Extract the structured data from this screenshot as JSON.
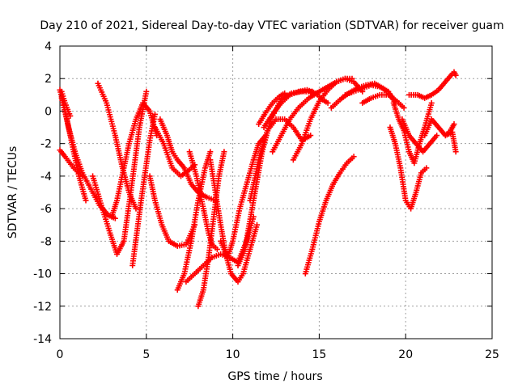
{
  "chart_data": {
    "type": "scatter",
    "title": "Day 210 of 2021, Sidereal Day-to-day VTEC variation (SDTVAR) for receiver guam",
    "xlabel": "GPS time / hours",
    "ylabel": "SDTVAR / TECUs",
    "xlim": [
      0,
      25
    ],
    "ylim": [
      -14,
      4
    ],
    "x_ticks": [
      "0",
      "5",
      "10",
      "15",
      "20",
      "25"
    ],
    "y_ticks": [
      "4",
      "2",
      "0",
      "-2",
      "-4",
      "-6",
      "-8",
      "-10",
      "-12",
      "-14"
    ],
    "grid": true,
    "legend": "none",
    "marker": "+",
    "color": "#ff0000",
    "series": [
      {
        "x": [
          0.0,
          0.2,
          0.5,
          0.9,
          1.3,
          1.8,
          2.3,
          2.8,
          3.2
        ],
        "y": [
          1.3,
          0.5,
          -1.0,
          -2.6,
          -3.8,
          -4.8,
          -5.8,
          -6.4,
          -6.6
        ]
      },
      {
        "x": [
          0.1,
          0.4,
          0.8,
          1.1,
          1.5
        ],
        "y": [
          0.8,
          -0.5,
          -2.5,
          -4.0,
          -5.5
        ]
      },
      {
        "x": [
          0.0,
          0.3,
          0.8,
          1.3
        ],
        "y": [
          -2.4,
          -2.8,
          -3.5,
          -4.0
        ]
      },
      {
        "x": [
          0.1,
          0.3,
          0.6
        ],
        "y": [
          1.2,
          0.5,
          -0.3
        ]
      },
      {
        "x": [
          2.2,
          2.7,
          3.2,
          3.6,
          4.0,
          4.4
        ],
        "y": [
          1.7,
          0.5,
          -1.5,
          -3.4,
          -5.0,
          -6.0
        ]
      },
      {
        "x": [
          1.9,
          2.4,
          2.9,
          3.3,
          3.7,
          4.1,
          4.6,
          5.0
        ],
        "y": [
          -4.0,
          -5.8,
          -7.5,
          -8.8,
          -8.0,
          -5.0,
          -1.0,
          1.2
        ]
      },
      {
        "x": [
          3.0,
          3.3,
          3.7,
          4.0,
          4.4,
          4.8,
          5.2,
          5.6
        ],
        "y": [
          -6.5,
          -5.5,
          -3.5,
          -2.0,
          -0.5,
          0.5,
          0.0,
          -1.5
        ]
      },
      {
        "x": [
          4.2,
          4.7,
          5.2,
          5.5
        ],
        "y": [
          -9.5,
          -5.5,
          -1.8,
          -0.2
        ]
      },
      {
        "x": [
          5.5,
          6.0,
          6.5,
          7.0,
          7.5,
          7.8
        ],
        "y": [
          -1.0,
          -2.0,
          -3.5,
          -4.0,
          -3.6,
          -3.3
        ]
      },
      {
        "x": [
          5.2,
          5.5,
          5.9,
          6.3,
          6.8,
          7.3,
          7.8
        ],
        "y": [
          -4.0,
          -5.5,
          -7.0,
          -8.0,
          -8.3,
          -8.2,
          -7.0
        ]
      },
      {
        "x": [
          5.8,
          6.2,
          6.5,
          6.8,
          7.2,
          7.6,
          8.0,
          8.5,
          9.0
        ],
        "y": [
          -0.5,
          -1.5,
          -2.5,
          -3.0,
          -3.5,
          -4.5,
          -5.0,
          -5.3,
          -5.5
        ]
      },
      {
        "x": [
          6.8,
          7.2,
          7.6,
          8.0,
          8.4,
          8.7
        ],
        "y": [
          -11.0,
          -10.0,
          -8.0,
          -5.5,
          -3.5,
          -2.5
        ]
      },
      {
        "x": [
          7.5,
          7.9,
          8.3,
          8.6,
          8.8,
          9.1
        ],
        "y": [
          -2.5,
          -4.0,
          -6.0,
          -7.5,
          -8.2,
          -8.5
        ]
      },
      {
        "x": [
          8.0,
          8.3,
          8.6,
          8.9,
          9.2,
          9.5
        ],
        "y": [
          -12.0,
          -11.0,
          -9.0,
          -6.5,
          -4.0,
          -2.5
        ]
      },
      {
        "x": [
          8.7,
          9.0,
          9.3,
          9.6,
          9.9,
          10.3,
          10.6,
          11.0,
          11.4
        ],
        "y": [
          -3.0,
          -5.0,
          -7.0,
          -8.8,
          -10.0,
          -10.5,
          -10.0,
          -8.5,
          -7.0
        ]
      },
      {
        "x": [
          7.3,
          7.8,
          8.3,
          8.8,
          9.3,
          9.8,
          10.3,
          10.8,
          11.2
        ],
        "y": [
          -10.5,
          -10.0,
          -9.5,
          -9.0,
          -8.8,
          -9.0,
          -9.3,
          -8.0,
          -6.5
        ]
      },
      {
        "x": [
          9.3,
          9.7,
          10.0,
          10.4,
          10.8,
          11.2,
          11.5,
          11.9
        ],
        "y": [
          -8.0,
          -9.0,
          -8.0,
          -6.0,
          -4.5,
          -3.0,
          -2.0,
          -1.5
        ]
      },
      {
        "x": [
          10.3,
          10.7,
          11.2,
          11.7,
          12.2,
          12.8,
          13.4,
          14.0,
          14.6
        ],
        "y": [
          -9.5,
          -8.5,
          -5.5,
          -2.5,
          -0.5,
          0.7,
          1.1,
          1.2,
          1.2
        ]
      },
      {
        "x": [
          11.0,
          11.5,
          12.0,
          12.5,
          13.0,
          13.5,
          14.0,
          14.5
        ],
        "y": [
          -5.5,
          -3.0,
          -1.2,
          -0.5,
          -0.5,
          -1.0,
          -1.8,
          -1.5
        ]
      },
      {
        "x": [
          11.8,
          12.3,
          12.8,
          13.3,
          13.8,
          14.3,
          14.8,
          15.2,
          15.5
        ],
        "y": [
          -1.0,
          -0.2,
          0.5,
          1.0,
          1.2,
          1.3,
          1.1,
          0.7,
          0.5
        ]
      },
      {
        "x": [
          11.5,
          11.9,
          12.3,
          12.7,
          13.0
        ],
        "y": [
          -0.8,
          -0.1,
          0.5,
          0.9,
          1.1
        ]
      },
      {
        "x": [
          12.3,
          12.8,
          13.3,
          13.8,
          14.4,
          15.0,
          15.5,
          16.0,
          16.5,
          16.9
        ],
        "y": [
          -2.5,
          -1.5,
          -0.5,
          0.2,
          0.8,
          1.2,
          1.5,
          1.8,
          2.0,
          2.0
        ]
      },
      {
        "x": [
          13.5,
          14.0,
          14.5,
          15.0,
          15.5,
          16.0,
          16.5,
          17.0,
          17.5
        ],
        "y": [
          -3.0,
          -2.0,
          -0.5,
          0.6,
          1.3,
          1.8,
          2.0,
          1.8,
          1.2
        ]
      },
      {
        "x": [
          15.7,
          16.2,
          16.7,
          17.2,
          17.7,
          18.2,
          18.7,
          19.2
        ],
        "y": [
          0.2,
          0.7,
          1.1,
          1.4,
          1.6,
          1.7,
          1.4,
          0.9
        ]
      },
      {
        "x": [
          16.5,
          17.0,
          17.5,
          18.0,
          18.5,
          19.0,
          19.4
        ],
        "y": [
          1.0,
          1.2,
          1.4,
          1.6,
          1.5,
          1.2,
          0.5
        ]
      },
      {
        "x": [
          17.5,
          18.0,
          18.5,
          19.0,
          19.5,
          19.9
        ],
        "y": [
          0.5,
          0.8,
          1.0,
          1.0,
          0.6,
          0.2
        ]
      },
      {
        "x": [
          14.2,
          14.6,
          15.0,
          15.4,
          15.8,
          16.2,
          16.6,
          17.0
        ],
        "y": [
          -10.0,
          -8.5,
          -6.8,
          -5.5,
          -4.5,
          -3.8,
          -3.2,
          -2.8
        ]
      },
      {
        "x": [
          19.1,
          19.4,
          19.7,
          20.0,
          20.3,
          20.6,
          20.9,
          21.2
        ],
        "y": [
          -1.0,
          -2.0,
          -3.5,
          -5.5,
          -6.0,
          -5.0,
          -3.8,
          -3.5
        ]
      },
      {
        "x": [
          19.3,
          19.6,
          19.9,
          20.2,
          20.5,
          20.8,
          21.1,
          21.5
        ],
        "y": [
          0.5,
          -0.5,
          -1.2,
          -2.5,
          -3.2,
          -2.0,
          -1.0,
          0.5
        ]
      },
      {
        "x": [
          19.8,
          20.2,
          20.6,
          21.0,
          21.4,
          21.8
        ],
        "y": [
          -0.5,
          -1.5,
          -2.0,
          -2.5,
          -2.0,
          -1.5
        ]
      },
      {
        "x": [
          20.2,
          20.7,
          21.1,
          21.5,
          21.9,
          22.3,
          22.7
        ],
        "y": [
          1.0,
          1.0,
          0.8,
          1.0,
          1.3,
          1.8,
          2.3
        ]
      },
      {
        "x": [
          21.1,
          21.5,
          21.9,
          22.3,
          22.7,
          22.9
        ],
        "y": [
          -1.5,
          -0.5,
          -1.0,
          -1.5,
          -1.3,
          -2.5
        ]
      },
      {
        "x": [
          22.3,
          22.6,
          22.8
        ],
        "y": [
          -1.5,
          -1.2,
          -0.8
        ]
      },
      {
        "x": [
          22.8,
          22.9
        ],
        "y": [
          2.4,
          2.2
        ]
      }
    ]
  }
}
